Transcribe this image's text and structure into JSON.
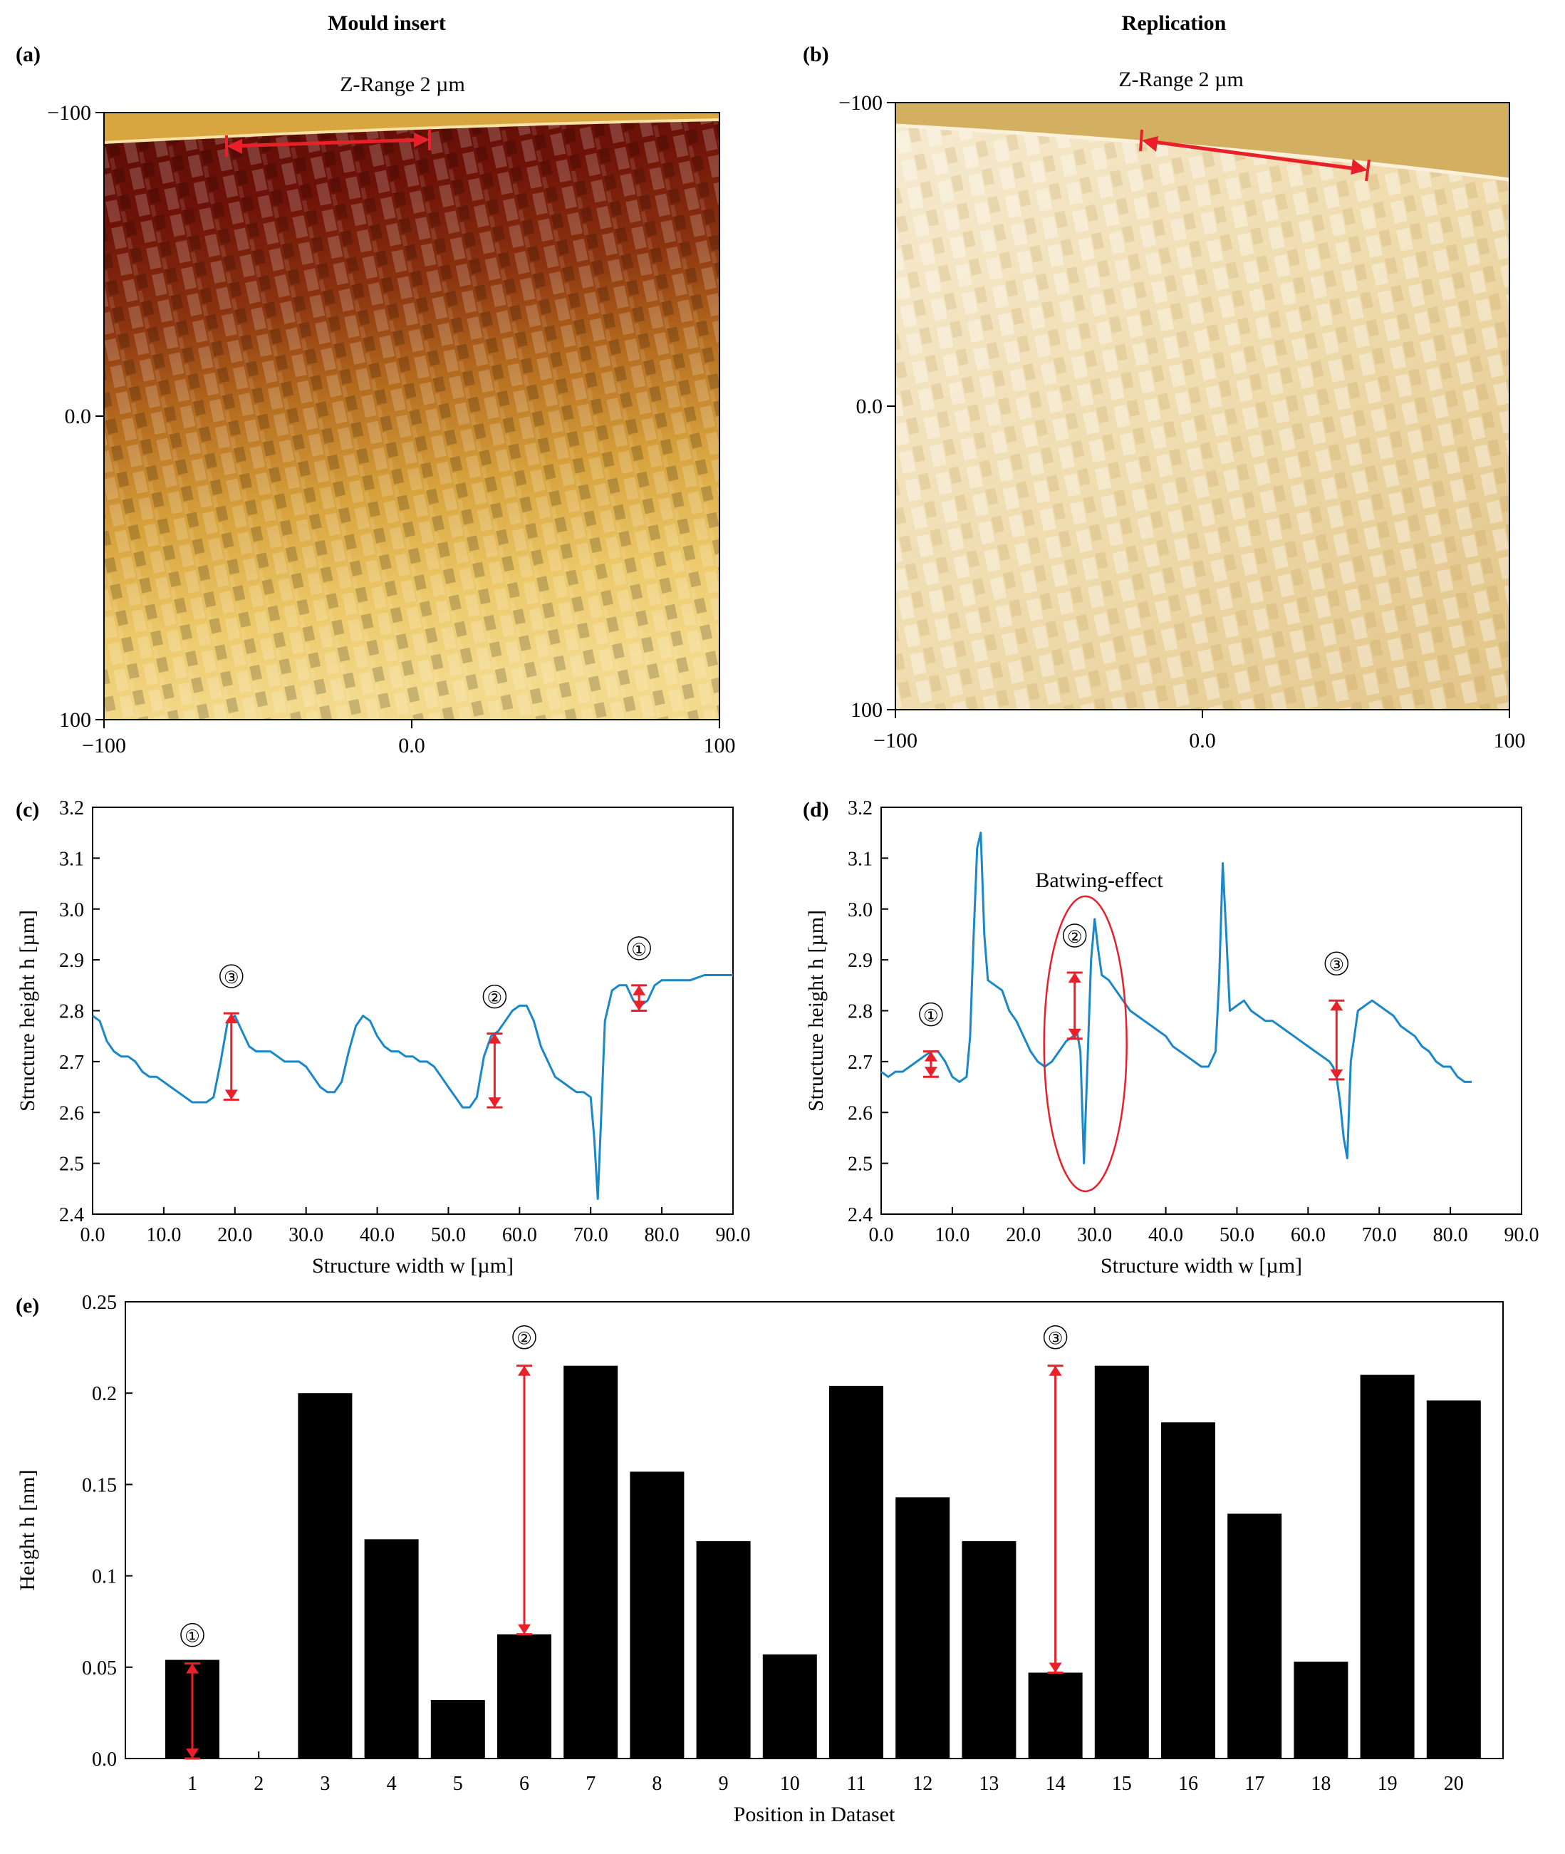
{
  "headers": {
    "left": "Mould insert",
    "right": "Replication"
  },
  "panels": {
    "a": {
      "label": "(a)",
      "zrange": "Z-Range 2 µm",
      "x_ticks": [
        "−100",
        "0.0",
        "100"
      ],
      "y_ticks": [
        "−100",
        "0.0",
        "100"
      ]
    },
    "b": {
      "label": "(b)",
      "zrange": "Z-Range 2 µm",
      "x_ticks": [
        "−100",
        "0.0",
        "100"
      ],
      "y_ticks": [
        "−100",
        "0.0",
        "100"
      ]
    },
    "c": {
      "label": "(c)"
    },
    "d": {
      "label": "(d)",
      "annotation": "Batwing-effect"
    },
    "e": {
      "label": "(e)"
    }
  },
  "marker_labels": [
    "①",
    "②",
    "③"
  ],
  "colors": {
    "line": "#1a87c9",
    "marker": "#e8202a",
    "bar": "#000000",
    "afm_dark": "#6e1208",
    "afm_light": "#f6dc8a",
    "replica": "#f1e2b6"
  },
  "chart_data": [
    {
      "id": "c",
      "type": "line",
      "xlabel": "Structure width w [µm]",
      "ylabel": "Structure height h [µm]",
      "xlim": [
        0,
        90
      ],
      "ylim": [
        2.4,
        3.2
      ],
      "x_ticks": [
        "0.0",
        "10.0",
        "20.0",
        "30.0",
        "40.0",
        "50.0",
        "60.0",
        "70.0",
        "80.0",
        "90.0"
      ],
      "y_ticks": [
        "2.4",
        "2.5",
        "2.6",
        "2.7",
        "2.8",
        "2.9",
        "3.0",
        "3.1",
        "3.2"
      ],
      "series": [
        {
          "x": [
            0,
            1,
            2,
            3,
            4,
            5,
            6,
            7,
            8,
            9,
            10,
            11,
            12,
            13,
            14,
            15,
            16,
            17,
            18,
            19,
            20,
            21,
            22,
            23,
            24,
            25,
            26,
            27,
            28,
            29,
            30,
            31,
            32,
            33,
            34,
            35,
            36,
            37,
            38,
            39,
            40,
            41,
            42,
            43,
            44,
            45,
            46,
            47,
            48,
            49,
            50,
            51,
            52,
            53,
            54,
            55,
            56,
            57,
            58,
            59,
            60,
            61,
            62,
            63,
            64,
            65,
            66,
            67,
            68,
            69,
            70,
            70.5,
            71,
            71.5,
            72,
            73,
            74,
            75,
            76,
            77,
            78,
            79,
            80,
            82,
            84,
            86,
            88,
            90
          ],
          "y": [
            2.79,
            2.78,
            2.74,
            2.72,
            2.71,
            2.71,
            2.7,
            2.68,
            2.67,
            2.67,
            2.66,
            2.65,
            2.64,
            2.63,
            2.62,
            2.62,
            2.62,
            2.63,
            2.7,
            2.78,
            2.79,
            2.76,
            2.73,
            2.72,
            2.72,
            2.72,
            2.71,
            2.7,
            2.7,
            2.7,
            2.69,
            2.67,
            2.65,
            2.64,
            2.64,
            2.66,
            2.72,
            2.77,
            2.79,
            2.78,
            2.75,
            2.73,
            2.72,
            2.72,
            2.71,
            2.71,
            2.7,
            2.7,
            2.69,
            2.67,
            2.65,
            2.63,
            2.61,
            2.61,
            2.63,
            2.71,
            2.75,
            2.76,
            2.78,
            2.8,
            2.81,
            2.81,
            2.78,
            2.73,
            2.7,
            2.67,
            2.66,
            2.65,
            2.64,
            2.64,
            2.63,
            2.55,
            2.43,
            2.6,
            2.78,
            2.84,
            2.85,
            2.85,
            2.82,
            2.81,
            2.82,
            2.85,
            2.86,
            2.86,
            2.86,
            2.87,
            2.87,
            2.87
          ]
        }
      ],
      "markers": [
        {
          "label": "①",
          "x": 76.8,
          "y_top": 2.85,
          "y_bottom": 2.8
        },
        {
          "label": "②",
          "x": 56.5,
          "y_top": 2.755,
          "y_bottom": 2.61
        },
        {
          "label": "③",
          "x": 19.5,
          "y_top": 2.795,
          "y_bottom": 2.625
        }
      ]
    },
    {
      "id": "d",
      "type": "line",
      "xlabel": "Structure width w [µm]",
      "ylabel": "Structure height h [µm]",
      "xlim": [
        0,
        90
      ],
      "ylim": [
        2.4,
        3.2
      ],
      "x_ticks": [
        "0.0",
        "10.0",
        "20.0",
        "30.0",
        "40.0",
        "50.0",
        "60.0",
        "70.0",
        "80.0",
        "90.0"
      ],
      "y_ticks": [
        "2.4",
        "2.5",
        "2.6",
        "2.7",
        "2.8",
        "2.9",
        "3.0",
        "3.1",
        "3.2"
      ],
      "series": [
        {
          "x": [
            0,
            1,
            2,
            3,
            4,
            5,
            6,
            7,
            8,
            9,
            10,
            11,
            12,
            12.5,
            13,
            13.5,
            14,
            14.5,
            15,
            16,
            17,
            18,
            19,
            20,
            21,
            22,
            23,
            24,
            25,
            26,
            27,
            27.5,
            28,
            28.5,
            29,
            29.5,
            30,
            30.5,
            31,
            32,
            33,
            34,
            35,
            36,
            37,
            38,
            39,
            40,
            41,
            42,
            43,
            44,
            45,
            46,
            47,
            47.5,
            48,
            48.5,
            49,
            50,
            51,
            52,
            53,
            54,
            55,
            56,
            57,
            58,
            59,
            60,
            61,
            62,
            63,
            63.5,
            64,
            64.5,
            65,
            65.5,
            66,
            67,
            68,
            69,
            70,
            71,
            72,
            73,
            74,
            75,
            76,
            77,
            78,
            79,
            80,
            81,
            82,
            83
          ],
          "y": [
            2.68,
            2.67,
            2.68,
            2.68,
            2.69,
            2.7,
            2.71,
            2.72,
            2.72,
            2.7,
            2.67,
            2.66,
            2.67,
            2.75,
            2.95,
            3.12,
            3.15,
            2.95,
            2.86,
            2.85,
            2.84,
            2.8,
            2.78,
            2.75,
            2.72,
            2.7,
            2.69,
            2.7,
            2.72,
            2.74,
            2.75,
            2.76,
            2.72,
            2.5,
            2.7,
            2.9,
            2.98,
            2.92,
            2.87,
            2.86,
            2.84,
            2.82,
            2.8,
            2.79,
            2.78,
            2.77,
            2.76,
            2.75,
            2.73,
            2.72,
            2.71,
            2.7,
            2.69,
            2.69,
            2.72,
            2.86,
            3.09,
            2.95,
            2.8,
            2.81,
            2.82,
            2.8,
            2.79,
            2.78,
            2.78,
            2.77,
            2.76,
            2.75,
            2.74,
            2.73,
            2.72,
            2.71,
            2.7,
            2.69,
            2.67,
            2.62,
            2.55,
            2.51,
            2.7,
            2.8,
            2.81,
            2.82,
            2.81,
            2.8,
            2.79,
            2.77,
            2.76,
            2.75,
            2.73,
            2.72,
            2.7,
            2.69,
            2.69,
            2.67,
            2.66,
            2.66
          ]
        }
      ],
      "markers": [
        {
          "label": "①",
          "x": 7.0,
          "y_top": 2.72,
          "y_bottom": 2.67
        },
        {
          "label": "②",
          "x": 27.2,
          "y_top": 2.875,
          "y_bottom": 2.745
        },
        {
          "label": "③",
          "x": 64.0,
          "y_top": 2.82,
          "y_bottom": 2.665
        }
      ]
    },
    {
      "id": "e",
      "type": "bar",
      "xlabel": "Position in Dataset",
      "ylabel": "Height h [nm]",
      "ylim": [
        0,
        0.25
      ],
      "y_ticks": [
        "0.0",
        "0.05",
        "0.1",
        "0.15",
        "0.2",
        "0.25"
      ],
      "categories": [
        "1",
        "2",
        "3",
        "4",
        "5",
        "6",
        "7",
        "8",
        "9",
        "10",
        "11",
        "12",
        "13",
        "14",
        "15",
        "16",
        "17",
        "18",
        "19",
        "20"
      ],
      "values": [
        0.054,
        0.0,
        0.2,
        0.12,
        0.032,
        0.068,
        0.215,
        0.157,
        0.119,
        0.057,
        0.204,
        0.143,
        0.119,
        0.047,
        0.215,
        0.184,
        0.134,
        0.053,
        0.21,
        0.196
      ],
      "markers": [
        {
          "label": "①",
          "x": 1,
          "y_top": 0.052,
          "y_bottom": 0.0
        },
        {
          "label": "②",
          "x": 6,
          "y_top": 0.215,
          "y_bottom": 0.068
        },
        {
          "label": "③",
          "x": 14,
          "y_top": 0.215,
          "y_bottom": 0.047
        }
      ]
    }
  ]
}
